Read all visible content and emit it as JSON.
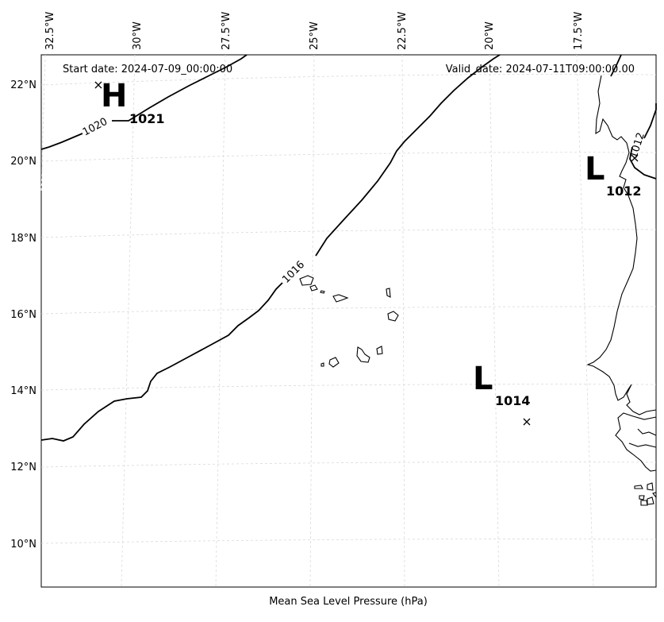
{
  "header": {
    "start_date": "Start date: 2024-07-09_00:00:00",
    "valid_date": "Valid_date: 2024-07-11T09:00:00.00"
  },
  "caption": "Mean Sea Level Pressure (hPa)",
  "axes": {
    "lon_labels": [
      "32.5°W",
      "30°W",
      "27.5°W",
      "25°W",
      "22.5°W",
      "20°W",
      "17.5°W"
    ],
    "lat_labels": [
      "22°N",
      "20°N",
      "18°N",
      "16°N",
      "14°N",
      "12°N",
      "10°N"
    ]
  },
  "chart_data": {
    "type": "map",
    "lon_range": [
      -32.5,
      -16.4
    ],
    "lat_range": [
      8.9,
      22.8
    ],
    "pressure_centers": [
      {
        "type": "H",
        "value": "1021",
        "lon": -31.0,
        "lat": 22.0
      },
      {
        "type": "L",
        "value": "1014",
        "lon": -19.3,
        "lat": 13.2
      },
      {
        "type": "L",
        "value": "1012",
        "lon": -16.8,
        "lat": 20.0
      }
    ],
    "isobars": [
      {
        "level": "1020",
        "label": "1020"
      },
      {
        "level": "1016",
        "label": "1016"
      },
      {
        "level": "1012",
        "label": "1012"
      }
    ]
  }
}
